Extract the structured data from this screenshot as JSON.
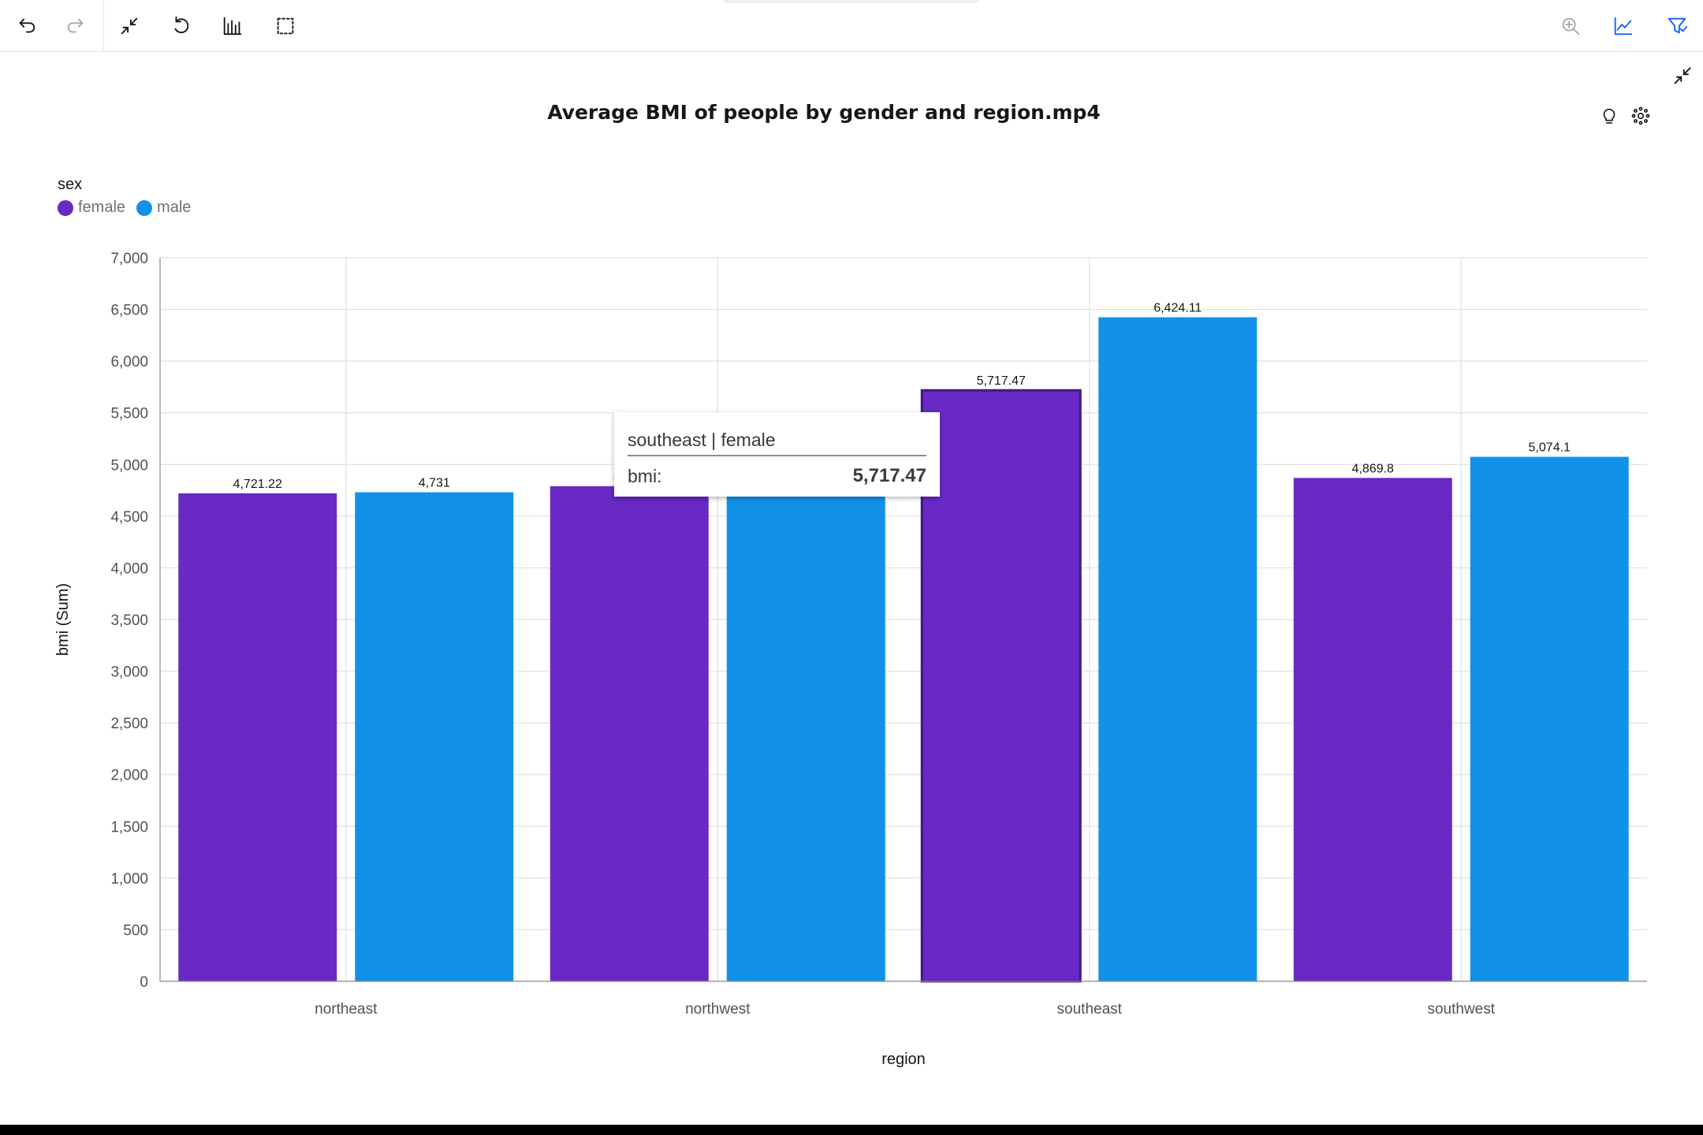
{
  "toolbar": {
    "buttons": [
      {
        "name": "undo-icon",
        "label": "Undo"
      },
      {
        "name": "redo-icon",
        "label": "Redo"
      },
      {
        "name": "collapse-icon",
        "label": "Collapse"
      },
      {
        "name": "reset-icon",
        "label": "Reset"
      },
      {
        "name": "bar-chart-icon",
        "label": "Chart type"
      },
      {
        "name": "selection-icon",
        "label": "Select"
      },
      {
        "name": "zoom-in-icon",
        "label": "Zoom"
      },
      {
        "name": "line-chart-icon",
        "label": "Trend"
      },
      {
        "name": "filter-icon",
        "label": "Filter"
      }
    ]
  },
  "chart_header": {
    "title": "Average BMI of people by gender and region.mp4",
    "icons": [
      "collapse-icon",
      "lightbulb-icon",
      "settings-icon"
    ]
  },
  "legend": {
    "title": "sex",
    "items": [
      {
        "label": "female",
        "color": "#6929c4"
      },
      {
        "label": "male",
        "color": "#1192e8"
      }
    ]
  },
  "tooltip": {
    "header": "southeast | female",
    "label": "bmi:",
    "value": "5,717.47"
  },
  "chart_data": {
    "type": "bar",
    "title": "Average BMI of people by gender and region.mp4",
    "xlabel": "region",
    "ylabel": "bmi (Sum)",
    "categories": [
      "northeast",
      "northwest",
      "southeast",
      "southwest"
    ],
    "series": [
      {
        "name": "female",
        "color": "#6929c4",
        "values": [
          4721.22,
          4790,
          5717.47,
          4869.8
        ],
        "labels": [
          "4,721.22",
          "4,790",
          "5,717.47",
          "4,869.8"
        ]
      },
      {
        "name": "male",
        "color": "#1192e8",
        "values": [
          4731,
          4700,
          6424.11,
          5074.1
        ],
        "labels": [
          "4,731",
          "4,700",
          "6,424.11",
          "5,074.1"
        ]
      }
    ],
    "ylim": [
      0,
      7000
    ],
    "yticks": [
      0,
      500,
      1000,
      1500,
      2000,
      2500,
      3000,
      3500,
      4000,
      4500,
      5000,
      5500,
      6000,
      6500,
      7000
    ],
    "ytick_labels": [
      "0",
      "500",
      "1,000",
      "1,500",
      "2,000",
      "2,500",
      "3,000",
      "3,500",
      "4,000",
      "4,500",
      "5,000",
      "5,500",
      "6,000",
      "6,500",
      "7,000"
    ],
    "highlighted": {
      "category": "southeast",
      "series": "female"
    },
    "grid": true,
    "legend_position": "top-left"
  }
}
